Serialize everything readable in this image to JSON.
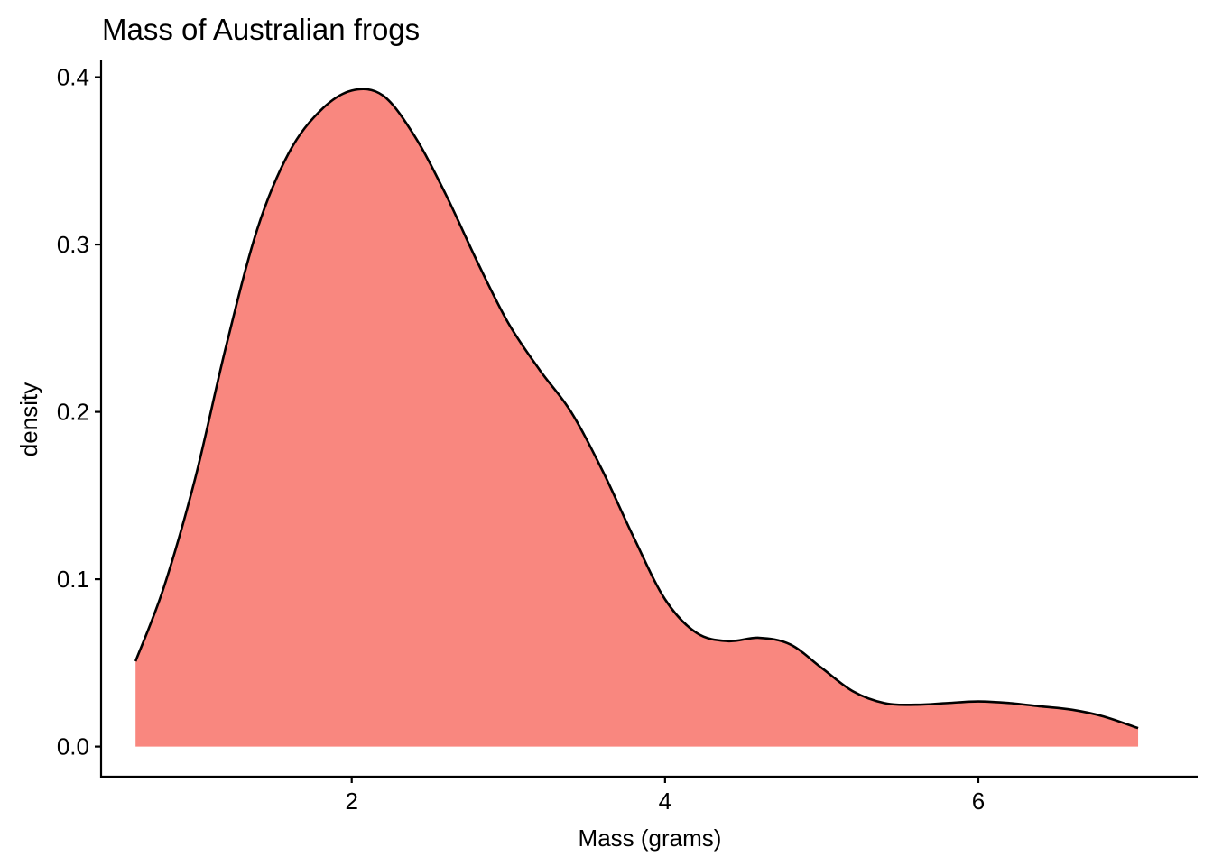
{
  "chart_data": {
    "type": "area",
    "title": "Mass of Australian frogs",
    "xlabel": "Mass (grams)",
    "ylabel": "density",
    "xlim": [
      0.4,
      7.4
    ],
    "ylim": [
      -0.018,
      0.41
    ],
    "x_ticks": [
      {
        "value": 2,
        "label": "2"
      },
      {
        "value": 4,
        "label": "4"
      },
      {
        "value": 6,
        "label": "6"
      }
    ],
    "y_ticks": [
      {
        "value": 0.0,
        "label": "0.0"
      },
      {
        "value": 0.1,
        "label": "0.1"
      },
      {
        "value": 0.2,
        "label": "0.2"
      },
      {
        "value": 0.3,
        "label": "0.3"
      },
      {
        "value": 0.4,
        "label": "0.4"
      }
    ],
    "grid": false,
    "legend": "none",
    "colors": {
      "fill": "#F8766D",
      "fill_opacity": 0.88,
      "outline": "#000000"
    },
    "series": [
      {
        "x": [
          0.62,
          0.8,
          1.0,
          1.2,
          1.4,
          1.6,
          1.8,
          2.0,
          2.2,
          2.4,
          2.6,
          2.8,
          3.0,
          3.2,
          3.4,
          3.6,
          3.8,
          4.0,
          4.2,
          4.4,
          4.6,
          4.8,
          5.0,
          5.2,
          5.4,
          5.6,
          5.8,
          6.0,
          6.2,
          6.4,
          6.6,
          6.8,
          7.02
        ],
        "y": [
          0.051,
          0.095,
          0.16,
          0.24,
          0.31,
          0.355,
          0.38,
          0.392,
          0.389,
          0.365,
          0.33,
          0.29,
          0.253,
          0.225,
          0.2,
          0.165,
          0.125,
          0.088,
          0.068,
          0.063,
          0.065,
          0.061,
          0.047,
          0.033,
          0.026,
          0.025,
          0.026,
          0.027,
          0.026,
          0.024,
          0.022,
          0.018,
          0.011
        ]
      }
    ]
  }
}
